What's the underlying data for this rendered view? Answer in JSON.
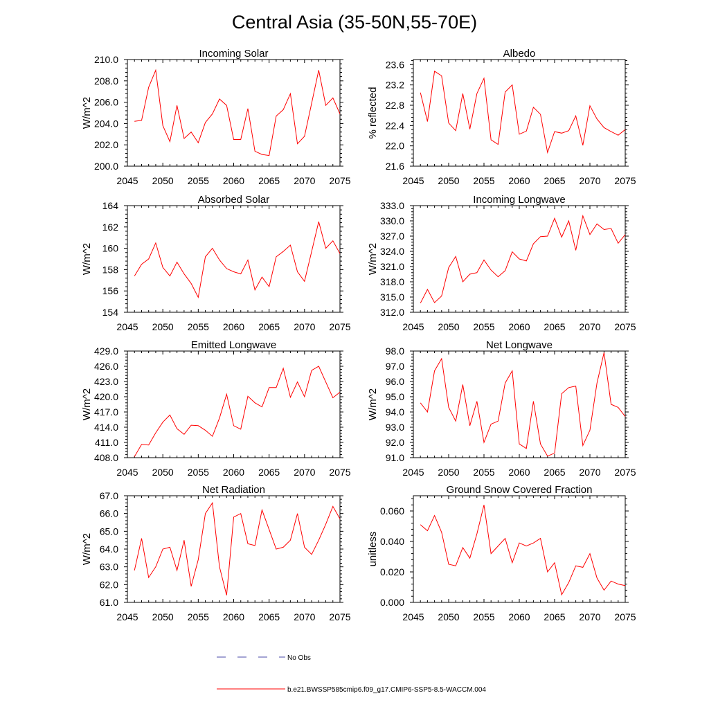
{
  "title": "Central Asia (35-50N,55-70E)",
  "legend": [
    {
      "label": "No Obs",
      "style": "dashed",
      "color": "#4a4aa8"
    },
    {
      "label": "b.e21.BWSSP585cmip6.f09_g17.CMIP6-SSP5-8.5-WACCM.004",
      "style": "solid",
      "color": "#ff0000"
    }
  ],
  "chart_data": [
    {
      "type": "line",
      "title": "Incoming Solar",
      "ylabel": "W/m^2",
      "xlim": [
        2045,
        2075
      ],
      "xticks": [
        "2045",
        "2050",
        "2055",
        "2060",
        "2065",
        "2070",
        "2075"
      ],
      "ylim": [
        200,
        210
      ],
      "yticks": [
        "200.0",
        "202.0",
        "204.0",
        "206.0",
        "208.0",
        "210.0"
      ],
      "x": [
        2046,
        2047,
        2048,
        2049,
        2050,
        2051,
        2052,
        2053,
        2054,
        2055,
        2056,
        2057,
        2058,
        2059,
        2060,
        2061,
        2062,
        2063,
        2064,
        2065,
        2066,
        2067,
        2068,
        2069,
        2070,
        2071,
        2072,
        2073,
        2074,
        2075
      ],
      "series": [
        {
          "name": "b.e21.BWSSP585cmip6.f09_g17.CMIP6-SSP5-8.5-WACCM.004",
          "color": "#ff0000",
          "values": [
            204.2,
            204.3,
            207.4,
            209.0,
            203.8,
            202.3,
            205.7,
            202.6,
            203.2,
            202.2,
            204.1,
            204.9,
            206.3,
            205.7,
            202.5,
            202.5,
            205.4,
            201.4,
            201.1,
            201.0,
            204.7,
            205.3,
            206.8,
            202.1,
            202.8,
            205.9,
            209.0,
            205.7,
            206.4,
            204.9
          ]
        }
      ]
    },
    {
      "type": "line",
      "title": "Albedo",
      "ylabel": "% reflected",
      "xlim": [
        2045,
        2075
      ],
      "xticks": [
        "2045",
        "2050",
        "2055",
        "2060",
        "2065",
        "2070",
        "2075"
      ],
      "ylim": [
        21.6,
        23.7
      ],
      "yticks": [
        "21.6",
        "22.0",
        "22.4",
        "22.8",
        "23.2",
        "23.6"
      ],
      "x": [
        2046,
        2047,
        2048,
        2049,
        2050,
        2051,
        2052,
        2053,
        2054,
        2055,
        2056,
        2057,
        2058,
        2059,
        2060,
        2061,
        2062,
        2063,
        2064,
        2065,
        2066,
        2067,
        2068,
        2069,
        2070,
        2071,
        2072,
        2073,
        2074,
        2075
      ],
      "series": [
        {
          "name": "b.e21.BWSSP585cmip6.f09_g17.CMIP6-SSP5-8.5-WACCM.004",
          "color": "#ff0000",
          "values": [
            23.05,
            22.48,
            23.47,
            23.38,
            22.45,
            22.3,
            23.03,
            22.33,
            23.03,
            23.33,
            22.12,
            22.03,
            23.06,
            23.2,
            22.23,
            22.29,
            22.76,
            22.62,
            21.87,
            22.28,
            22.25,
            22.3,
            22.59,
            22.01,
            22.79,
            22.53,
            22.36,
            22.28,
            22.21,
            22.32
          ]
        }
      ]
    },
    {
      "type": "line",
      "title": "Absorbed Solar",
      "ylabel": "W/m^2",
      "xlim": [
        2045,
        2075
      ],
      "xticks": [
        "2045",
        "2050",
        "2055",
        "2060",
        "2065",
        "2070",
        "2075"
      ],
      "ylim": [
        154,
        164
      ],
      "yticks": [
        "154",
        "156",
        "158",
        "160",
        "162",
        "164"
      ],
      "x": [
        2046,
        2047,
        2048,
        2049,
        2050,
        2051,
        2052,
        2053,
        2054,
        2055,
        2056,
        2057,
        2058,
        2059,
        2060,
        2061,
        2062,
        2063,
        2064,
        2065,
        2066,
        2067,
        2068,
        2069,
        2070,
        2071,
        2072,
        2073,
        2074,
        2075
      ],
      "series": [
        {
          "name": "b.e21.BWSSP585cmip6.f09_g17.CMIP6-SSP5-8.5-WACCM.004",
          "color": "#ff0000",
          "values": [
            157.4,
            158.5,
            159.0,
            160.5,
            158.2,
            157.4,
            158.7,
            157.6,
            156.7,
            155.4,
            159.2,
            160.0,
            158.9,
            158.1,
            157.8,
            157.6,
            158.9,
            156.1,
            157.3,
            156.4,
            159.2,
            159.7,
            160.3,
            157.8,
            156.9,
            159.7,
            162.5,
            160.0,
            160.7,
            159.5
          ]
        }
      ]
    },
    {
      "type": "line",
      "title": "Incoming Longwave",
      "ylabel": "W/m^2",
      "xlim": [
        2045,
        2075
      ],
      "xticks": [
        "2045",
        "2050",
        "2055",
        "2060",
        "2065",
        "2070",
        "2075"
      ],
      "ylim": [
        312,
        333
      ],
      "yticks": [
        "312.0",
        "315.0",
        "318.0",
        "321.0",
        "324.0",
        "327.0",
        "330.0",
        "333.0"
      ],
      "x": [
        2046,
        2047,
        2048,
        2049,
        2050,
        2051,
        2052,
        2053,
        2054,
        2055,
        2056,
        2057,
        2058,
        2059,
        2060,
        2061,
        2062,
        2063,
        2064,
        2065,
        2066,
        2067,
        2068,
        2069,
        2070,
        2071,
        2072,
        2073,
        2074,
        2075
      ],
      "series": [
        {
          "name": "b.e21.BWSSP585cmip6.f09_g17.CMIP6-SSP5-8.5-WACCM.004",
          "color": "#ff0000",
          "values": [
            313.8,
            316.5,
            313.9,
            315.2,
            320.8,
            323.0,
            318.0,
            319.5,
            319.8,
            322.3,
            320.3,
            319.0,
            320.2,
            323.9,
            322.5,
            322.1,
            325.5,
            326.9,
            327.0,
            330.5,
            326.8,
            330.0,
            324.2,
            331.0,
            327.3,
            329.4,
            328.3,
            328.5,
            325.6,
            327.3
          ]
        }
      ]
    },
    {
      "type": "line",
      "title": "Emitted Longwave",
      "ylabel": "W/m^2",
      "xlim": [
        2045,
        2075
      ],
      "xticks": [
        "2045",
        "2050",
        "2055",
        "2060",
        "2065",
        "2070",
        "2075"
      ],
      "ylim": [
        408,
        429
      ],
      "yticks": [
        "408.0",
        "411.0",
        "414.0",
        "417.0",
        "420.0",
        "423.0",
        "426.0",
        "429.0"
      ],
      "x": [
        2046,
        2047,
        2048,
        2049,
        2050,
        2051,
        2052,
        2053,
        2054,
        2055,
        2056,
        2057,
        2058,
        2059,
        2060,
        2061,
        2062,
        2063,
        2064,
        2065,
        2066,
        2067,
        2068,
        2069,
        2070,
        2071,
        2072,
        2073,
        2074,
        2075
      ],
      "series": [
        {
          "name": "b.e21.BWSSP585cmip6.f09_g17.CMIP6-SSP5-8.5-WACCM.004",
          "color": "#ff0000",
          "values": [
            408.2,
            410.6,
            410.5,
            412.9,
            415.0,
            416.4,
            413.7,
            412.6,
            414.4,
            414.3,
            413.4,
            412.2,
            415.8,
            420.5,
            414.3,
            413.6,
            420.1,
            418.8,
            418.0,
            421.8,
            421.8,
            425.6,
            419.9,
            422.9,
            420.0,
            425.2,
            426.0,
            422.9,
            419.8,
            420.9
          ]
        }
      ]
    },
    {
      "type": "line",
      "title": "Net Longwave",
      "ylabel": "W/m^2",
      "xlim": [
        2045,
        2075
      ],
      "xticks": [
        "2045",
        "2050",
        "2055",
        "2060",
        "2065",
        "2070",
        "2075"
      ],
      "ylim": [
        91,
        98
      ],
      "yticks": [
        "91.0",
        "92.0",
        "93.0",
        "94.0",
        "95.0",
        "96.0",
        "97.0",
        "98.0"
      ],
      "x": [
        2046,
        2047,
        2048,
        2049,
        2050,
        2051,
        2052,
        2053,
        2054,
        2055,
        2056,
        2057,
        2058,
        2059,
        2060,
        2061,
        2062,
        2063,
        2064,
        2065,
        2066,
        2067,
        2068,
        2069,
        2070,
        2071,
        2072,
        2073,
        2074,
        2075
      ],
      "series": [
        {
          "name": "b.e21.BWSSP585cmip6.f09_g17.CMIP6-SSP5-8.5-WACCM.004",
          "color": "#ff0000",
          "values": [
            94.6,
            94.0,
            96.7,
            97.5,
            94.3,
            93.4,
            95.8,
            93.1,
            94.7,
            92.0,
            93.2,
            93.4,
            95.9,
            96.7,
            91.9,
            91.6,
            94.7,
            91.9,
            91.1,
            91.3,
            95.2,
            95.6,
            95.7,
            91.8,
            92.8,
            95.9,
            97.9,
            94.5,
            94.3,
            93.7
          ]
        }
      ]
    },
    {
      "type": "line",
      "title": "Net Radiation",
      "ylabel": "W/m^2",
      "xlim": [
        2045,
        2075
      ],
      "xticks": [
        "2045",
        "2050",
        "2055",
        "2060",
        "2065",
        "2070",
        "2075"
      ],
      "ylim": [
        61,
        67
      ],
      "yticks": [
        "61.0",
        "62.0",
        "63.0",
        "64.0",
        "65.0",
        "66.0",
        "67.0"
      ],
      "x": [
        2046,
        2047,
        2048,
        2049,
        2050,
        2051,
        2052,
        2053,
        2054,
        2055,
        2056,
        2057,
        2058,
        2059,
        2060,
        2061,
        2062,
        2063,
        2064,
        2065,
        2066,
        2067,
        2068,
        2069,
        2070,
        2071,
        2072,
        2073,
        2074,
        2075
      ],
      "series": [
        {
          "name": "b.e21.BWSSP585cmip6.f09_g17.CMIP6-SSP5-8.5-WACCM.004",
          "color": "#ff0000",
          "values": [
            62.8,
            64.6,
            62.4,
            63.0,
            64.0,
            64.1,
            62.8,
            64.5,
            61.9,
            63.4,
            66.0,
            66.6,
            63.0,
            61.4,
            65.8,
            66.0,
            64.3,
            64.2,
            66.2,
            65.1,
            64.0,
            64.1,
            64.5,
            66.0,
            64.1,
            63.7,
            64.5,
            65.4,
            66.4,
            65.7
          ]
        }
      ]
    },
    {
      "type": "line",
      "title": "Ground Snow Covered Fraction",
      "ylabel": "unitless",
      "xlim": [
        2045,
        2075
      ],
      "xticks": [
        "2045",
        "2050",
        "2055",
        "2060",
        "2065",
        "2070",
        "2075"
      ],
      "ylim": [
        0,
        0.07
      ],
      "yticks": [
        "0.000",
        "0.020",
        "0.040",
        "0.060"
      ],
      "x": [
        2046,
        2047,
        2048,
        2049,
        2050,
        2051,
        2052,
        2053,
        2054,
        2055,
        2056,
        2057,
        2058,
        2059,
        2060,
        2061,
        2062,
        2063,
        2064,
        2065,
        2066,
        2067,
        2068,
        2069,
        2070,
        2071,
        2072,
        2073,
        2074,
        2075
      ],
      "series": [
        {
          "name": "b.e21.BWSSP585cmip6.f09_g17.CMIP6-SSP5-8.5-WACCM.004",
          "color": "#ff0000",
          "values": [
            0.051,
            0.047,
            0.057,
            0.046,
            0.025,
            0.024,
            0.036,
            0.029,
            0.045,
            0.064,
            0.032,
            0.037,
            0.042,
            0.026,
            0.039,
            0.037,
            0.039,
            0.042,
            0.02,
            0.026,
            0.005,
            0.013,
            0.024,
            0.023,
            0.032,
            0.016,
            0.008,
            0.014,
            0.012,
            0.011
          ]
        }
      ]
    }
  ]
}
